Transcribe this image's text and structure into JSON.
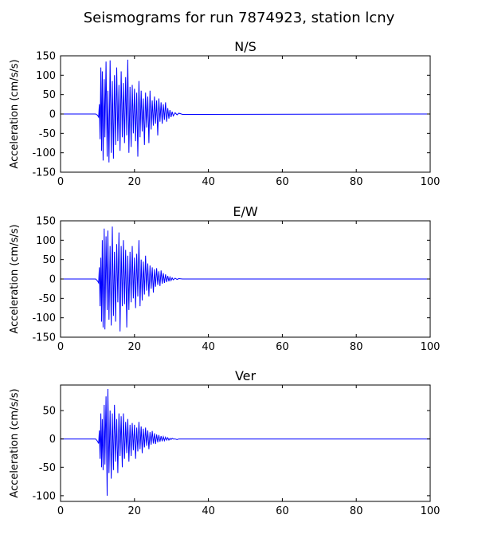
{
  "figure": {
    "title": "Seismograms for run 7874923, station lcny",
    "trace_color": "#0000ff"
  },
  "chart_data": [
    {
      "type": "line",
      "title": "N/S",
      "xlabel": "",
      "ylabel": "Acceleration (cm/s/s)",
      "xlim": [
        0,
        100
      ],
      "ylim": [
        -150,
        150
      ],
      "xticks": [
        0,
        20,
        40,
        60,
        80,
        100
      ],
      "yticks": [
        -150,
        -100,
        -50,
        0,
        50,
        100,
        150
      ],
      "series": [
        {
          "x": [
            0,
            9.5,
            10.0,
            10.3,
            10.5,
            10.7,
            10.9,
            11.1,
            11.3,
            11.5,
            11.8,
            12.0,
            12.3,
            12.6,
            12.8,
            13.1,
            13.4,
            13.7,
            14.0,
            14.3,
            14.6,
            14.9,
            15.2,
            15.5,
            15.8,
            16.1,
            16.4,
            16.7,
            17.0,
            17.3,
            17.6,
            17.9,
            18.2,
            18.5,
            18.8,
            19.1,
            19.4,
            19.7,
            20.0,
            20.3,
            20.6,
            20.9,
            21.2,
            21.5,
            21.8,
            22.1,
            22.4,
            22.7,
            23.0,
            23.3,
            23.6,
            23.9,
            24.2,
            24.5,
            24.8,
            25.1,
            25.4,
            25.7,
            26.0,
            26.3,
            26.6,
            26.9,
            27.2,
            27.5,
            27.8,
            28.1,
            28.4,
            28.7,
            29.0,
            29.3,
            29.6,
            29.9,
            30.2,
            30.5,
            31.0,
            31.5,
            32.0,
            33.0,
            100
          ],
          "y": [
            0,
            0,
            -3,
            -8,
            25,
            -65,
            120,
            -95,
            110,
            -120,
            90,
            -60,
            135,
            -110,
            60,
            -125,
            138,
            -100,
            85,
            -115,
            100,
            -80,
            120,
            -70,
            75,
            -95,
            110,
            -60,
            80,
            -75,
            95,
            -55,
            140,
            -100,
            70,
            -85,
            75,
            -50,
            65,
            -70,
            55,
            -110,
            85,
            -60,
            60,
            -45,
            40,
            -80,
            55,
            -35,
            45,
            -75,
            60,
            -40,
            35,
            -30,
            45,
            -25,
            35,
            -55,
            40,
            -20,
            30,
            -25,
            25,
            -15,
            30,
            -20,
            15,
            -12,
            10,
            -8,
            6,
            -5,
            3,
            -2,
            2,
            -1,
            0
          ]
        }
      ]
    },
    {
      "type": "line",
      "title": "E/W",
      "xlabel": "",
      "ylabel": "Acceleration (cm/s/s)",
      "xlim": [
        0,
        100
      ],
      "ylim": [
        -150,
        150
      ],
      "xticks": [
        0,
        20,
        40,
        60,
        80,
        100
      ],
      "yticks": [
        -150,
        -100,
        -50,
        0,
        50,
        100,
        150
      ],
      "series": [
        {
          "x": [
            0,
            9.5,
            10.0,
            10.3,
            10.5,
            10.7,
            10.9,
            11.1,
            11.3,
            11.5,
            11.8,
            12.0,
            12.3,
            12.6,
            12.8,
            13.1,
            13.4,
            13.7,
            14.0,
            14.3,
            14.6,
            14.9,
            15.2,
            15.5,
            15.8,
            16.1,
            16.4,
            16.7,
            17.0,
            17.3,
            17.6,
            17.9,
            18.2,
            18.5,
            18.8,
            19.1,
            19.4,
            19.7,
            20.0,
            20.3,
            20.6,
            20.9,
            21.2,
            21.5,
            21.8,
            22.1,
            22.4,
            22.7,
            23.0,
            23.3,
            23.6,
            23.9,
            24.2,
            24.5,
            24.8,
            25.1,
            25.4,
            25.7,
            26.0,
            26.3,
            26.6,
            26.9,
            27.2,
            27.5,
            27.8,
            28.1,
            28.4,
            28.7,
            29.0,
            29.3,
            29.6,
            29.9,
            30.2,
            30.5,
            31.0,
            31.5,
            32.0,
            33.0,
            100
          ],
          "y": [
            0,
            0,
            -5,
            -10,
            30,
            -70,
            55,
            -110,
            100,
            -125,
            130,
            -130,
            110,
            -80,
            125,
            -105,
            85,
            -120,
            135,
            -95,
            70,
            -110,
            90,
            -60,
            120,
            -135,
            85,
            -70,
            100,
            -65,
            75,
            -125,
            60,
            -80,
            70,
            -60,
            85,
            -50,
            55,
            -75,
            65,
            -45,
            100,
            -70,
            50,
            -55,
            45,
            -40,
            60,
            -30,
            40,
            -45,
            35,
            -25,
            30,
            -35,
            25,
            -20,
            28,
            -15,
            20,
            -18,
            22,
            -12,
            15,
            -10,
            12,
            -8,
            8,
            -6,
            5,
            -4,
            3,
            -2,
            2,
            -1,
            1,
            0,
            0
          ]
        }
      ]
    },
    {
      "type": "line",
      "title": "Ver",
      "xlabel": "",
      "ylabel": "Acceleration (cm/s/s)",
      "xlim": [
        0,
        100
      ],
      "ylim": [
        -110,
        95
      ],
      "xticks": [
        0,
        20,
        40,
        60,
        80,
        100
      ],
      "yticks": [
        -100,
        -50,
        0,
        50
      ],
      "series": [
        {
          "x": [
            0,
            9.5,
            10.0,
            10.3,
            10.5,
            10.7,
            10.9,
            11.1,
            11.3,
            11.5,
            11.8,
            12.0,
            12.3,
            12.6,
            12.8,
            13.1,
            13.4,
            13.7,
            14.0,
            14.3,
            14.6,
            14.9,
            15.2,
            15.5,
            15.8,
            16.1,
            16.4,
            16.7,
            17.0,
            17.3,
            17.6,
            17.9,
            18.2,
            18.5,
            18.8,
            19.1,
            19.4,
            19.7,
            20.0,
            20.3,
            20.6,
            20.9,
            21.2,
            21.5,
            21.8,
            22.1,
            22.4,
            22.7,
            23.0,
            23.3,
            23.6,
            23.9,
            24.2,
            24.5,
            24.8,
            25.1,
            25.4,
            25.7,
            26.0,
            26.3,
            26.6,
            26.9,
            27.2,
            27.5,
            27.8,
            28.1,
            28.4,
            28.7,
            29.0,
            29.3,
            29.6,
            29.9,
            30.2,
            30.5,
            31.0,
            31.5,
            32.0,
            33.0,
            100
          ],
          "y": [
            0,
            0,
            -4,
            -8,
            15,
            -35,
            45,
            -50,
            35,
            -55,
            60,
            -45,
            75,
            -100,
            88,
            -60,
            50,
            -70,
            45,
            -55,
            60,
            -40,
            35,
            -60,
            45,
            -30,
            40,
            -50,
            45,
            -35,
            30,
            -25,
            35,
            -40,
            25,
            -30,
            28,
            -20,
            25,
            -35,
            20,
            -22,
            30,
            -18,
            22,
            -25,
            18,
            -15,
            20,
            -12,
            15,
            -18,
            12,
            -10,
            14,
            -8,
            10,
            -9,
            8,
            -6,
            7,
            -5,
            5,
            -4,
            4,
            -3,
            3,
            -2,
            2,
            -2,
            1,
            -1,
            1,
            0,
            0,
            -1,
            0,
            0,
            0
          ]
        }
      ]
    }
  ]
}
